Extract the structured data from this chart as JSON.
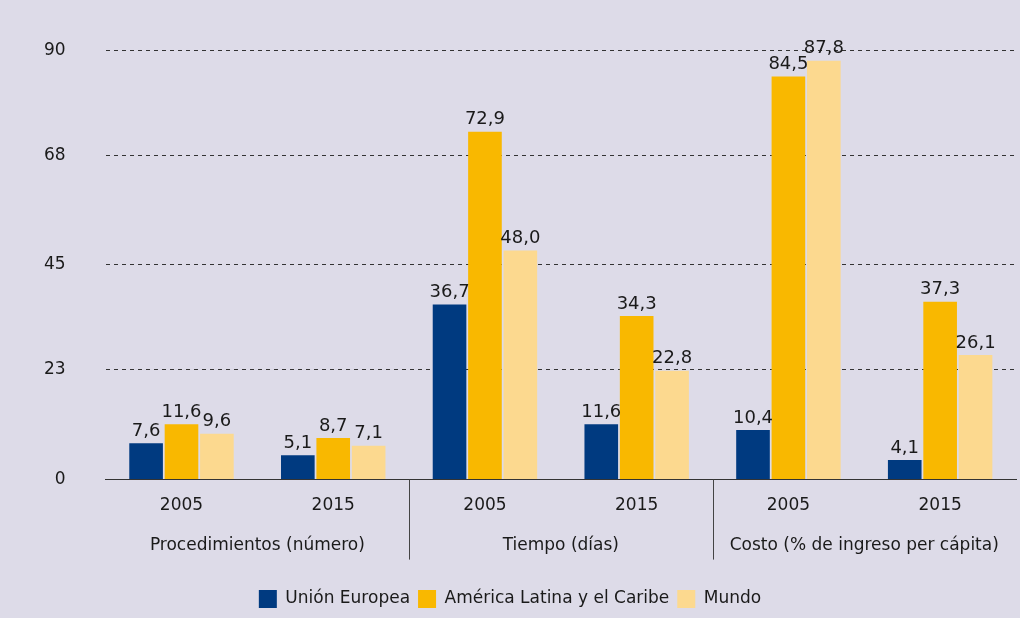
{
  "chart_data": {
    "type": "bar",
    "categories": [
      "2005",
      "2015",
      "2005",
      "2015",
      "2005",
      "2015"
    ],
    "annotations": [
      "Procedimientos (número)",
      "Tiempo (días)",
      "Costo (% de ingreso per cápita)"
    ],
    "series": [
      {
        "name": "Unión Europea",
        "color": "#003a80",
        "values": [
          7.6,
          5.1,
          36.7,
          11.6,
          10.4,
          4.1
        ],
        "value_labels": [
          "7,6",
          "5,1",
          "36,7",
          "11,6",
          "10,4",
          "4,1"
        ]
      },
      {
        "name": "América Latina y el Caribe",
        "color": "#f9b800",
        "values": [
          11.6,
          8.7,
          72.9,
          34.3,
          84.5,
          37.3
        ],
        "value_labels": [
          "11,6",
          "8,7",
          "72,9",
          "34,3",
          "84,5",
          "37,3"
        ]
      },
      {
        "name": "Mundo",
        "color": "#fcd98f",
        "values": [
          9.6,
          7.1,
          48.0,
          22.8,
          87.8,
          26.1
        ],
        "value_labels": [
          "9,6",
          "7,1",
          "48,0",
          "22,8",
          "87,8",
          "26,1"
        ]
      }
    ],
    "ylim": [
      0,
      90
    ],
    "yticks": [
      0,
      23,
      45,
      68,
      90
    ],
    "grid": "y",
    "legend": "bottom"
  }
}
